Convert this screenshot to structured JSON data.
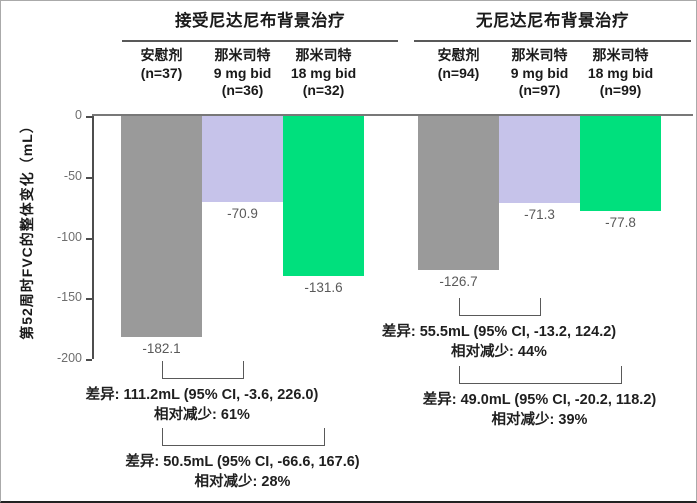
{
  "chart_data": {
    "type": "bar",
    "title": "",
    "xlabel": "",
    "ylabel": "第52周时FVC的整体变化（mL）",
    "ylim": [
      -200,
      0
    ],
    "yticks": [
      0,
      -50,
      -100,
      -150,
      -200
    ],
    "grid": false,
    "legend": "none",
    "groups": [
      {
        "title": "接受尼达尼布背景治疗",
        "bars": [
          {
            "category": "安慰剂 (n=37)",
            "label": "安慰剂\n(n=37)",
            "value": -182.1,
            "value_label": "-182.1",
            "color": "#9a9a9a"
          },
          {
            "category": "那米司特 9 mg bid (n=36)",
            "label": "那米司特\n9 mg bid\n(n=36)",
            "value": -70.9,
            "value_label": "-70.9",
            "color": "#c6c3ea"
          },
          {
            "category": "那米司特 18 mg bid (n=32)",
            "label": "那米司特\n18 mg bid\n(n=32)",
            "value": -131.6,
            "value_label": "-131.6",
            "color": "#00e07d"
          }
        ],
        "comparisons": [
          {
            "between": [
              0,
              1
            ],
            "line1": "差异: 111.2mL (95% CI, -3.6, 226.0)",
            "line2": "相对减少: 61%"
          },
          {
            "between": [
              0,
              2
            ],
            "line1": "差异: 50.5mL (95% CI, -66.6, 167.6)",
            "line2": "相对减少: 28%"
          }
        ]
      },
      {
        "title": "无尼达尼布背景治疗",
        "bars": [
          {
            "category": "安慰剂 (n=94)",
            "label": "安慰剂\n(n=94)",
            "value": -126.7,
            "value_label": "-126.7",
            "color": "#9a9a9a"
          },
          {
            "category": "那米司特 9 mg bid (n=97)",
            "label": "那米司特\n9 mg bid\n(n=97)",
            "value": -71.3,
            "value_label": "-71.3",
            "color": "#c6c3ea"
          },
          {
            "category": "那米司特 18 mg bid (n=99)",
            "label": "那米司特\n18 mg bid\n(n=99)",
            "value": -77.8,
            "value_label": "-77.8",
            "color": "#00e07d"
          }
        ],
        "comparisons": [
          {
            "between": [
              0,
              1
            ],
            "line1": "差异: 55.5mL (95% CI, -13.2, 124.2)",
            "line2": "相对减少: 44%"
          },
          {
            "between": [
              0,
              2
            ],
            "line1": "差异: 49.0mL (95% CI, -20.2, 118.2)",
            "line2": "相对减少: 39%"
          }
        ]
      }
    ],
    "colors": {
      "placebo_bar": "#9a9a9a",
      "dose9_bar": "#c6c3ea",
      "dose18_bar": "#00e07d",
      "axis": "#4d4d4d",
      "bracket": "#595959"
    }
  }
}
